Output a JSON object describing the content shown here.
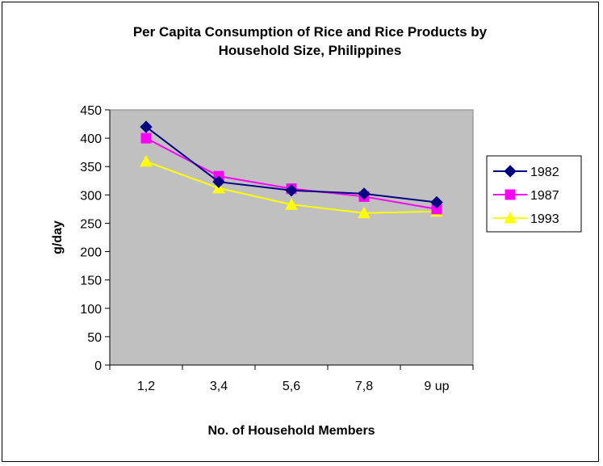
{
  "chart_data": {
    "type": "line",
    "title": "Per Capita Consumption of Rice and Rice Products by Household Size, Philippines",
    "title_lines": [
      "Per Capita Consumption of Rice and Rice Products by",
      "Household Size, Philippines"
    ],
    "xlabel": "No. of Household Members",
    "ylabel": "g/day",
    "categories": [
      "1,2",
      "3,4",
      "5,6",
      "7,8",
      "9 up"
    ],
    "ylim": [
      0,
      450
    ],
    "yticks": [
      0,
      50,
      100,
      150,
      200,
      250,
      300,
      350,
      400,
      450
    ],
    "grid": false,
    "plot_background": "#C0C0C0",
    "legend_position": "right",
    "series": [
      {
        "name": "1982",
        "values": [
          420,
          323,
          308,
          302,
          287
        ],
        "color": "#000080",
        "marker": "diamond"
      },
      {
        "name": "1987",
        "values": [
          400,
          333,
          311,
          297,
          275
        ],
        "color": "#FF00FF",
        "marker": "square"
      },
      {
        "name": "1993",
        "values": [
          359,
          312,
          283,
          268,
          271
        ],
        "color": "#FFFF00",
        "marker": "triangle"
      }
    ]
  }
}
